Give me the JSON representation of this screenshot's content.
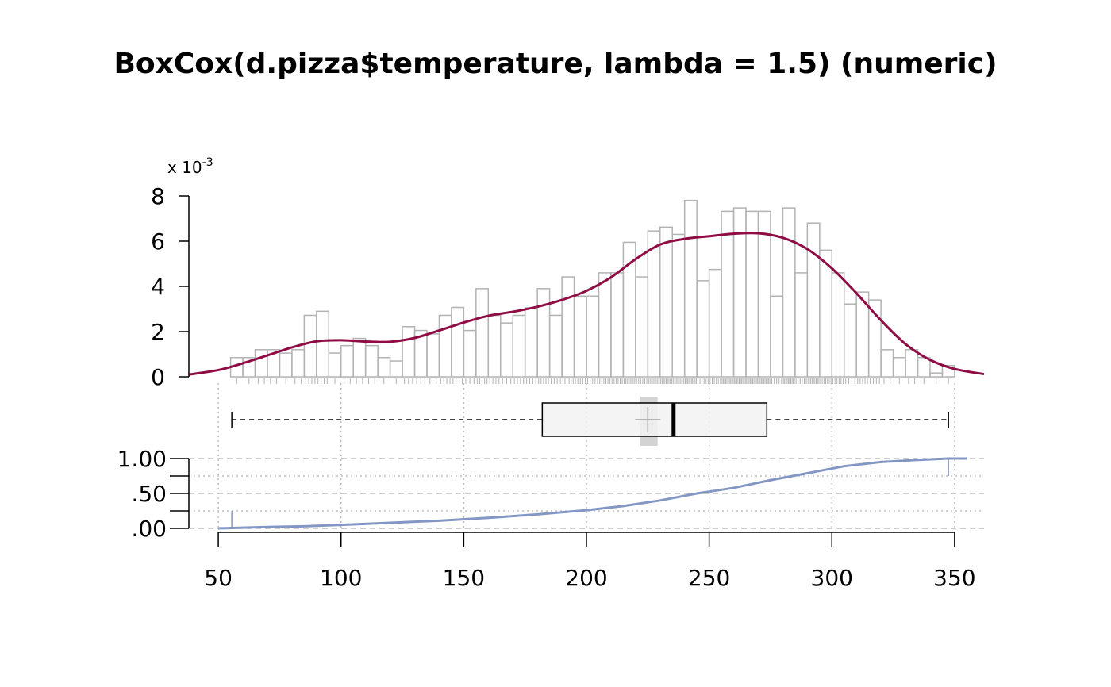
{
  "chart_data": {
    "type": "histogram-density-boxplot-ecdf",
    "title": "BoxCox(d.pizza$temperature, lambda = 1.5) (numeric)",
    "colors": {
      "bars": "#b3b3b3",
      "density": "#8f0c44",
      "box_fill": "#f2f2f2",
      "mean_band": "#d3d3d3",
      "ecdf": "#8497c4",
      "grid": "#bebebe"
    },
    "x_axis": {
      "ticks": [
        50,
        100,
        150,
        200,
        250,
        300,
        350
      ],
      "xlim": [
        38,
        362
      ]
    },
    "histogram": {
      "scale_label": "x 10",
      "scale_exponent": "-3",
      "y_ticks": [
        "0",
        "2",
        "4",
        "6",
        "8"
      ],
      "y_tick_values": [
        0,
        2,
        4,
        6,
        8
      ],
      "ylim": [
        0,
        8
      ],
      "bin_start": 55,
      "bin_width": 5,
      "densities": [
        0.85,
        0.85,
        1.2,
        1.2,
        1.05,
        1.2,
        2.72,
        2.9,
        1.05,
        1.38,
        1.7,
        1.38,
        0.85,
        0.7,
        2.22,
        2.05,
        1.9,
        2.72,
        3.07,
        2.05,
        3.9,
        2.72,
        2.38,
        2.72,
        3.05,
        3.9,
        2.72,
        4.42,
        3.57,
        3.57,
        4.6,
        4.6,
        5.95,
        4.42,
        6.45,
        6.62,
        6.3,
        7.8,
        4.25,
        4.75,
        7.32,
        7.47,
        7.32,
        7.32,
        3.57,
        7.47,
        4.6,
        6.8,
        5.6,
        4.6,
        3.22,
        3.75,
        3.4,
        1.2,
        0.85,
        1.2,
        0.85,
        0.17,
        0.5
      ]
    },
    "density_curve": {
      "x": [
        38,
        50,
        60,
        70,
        80,
        90,
        100,
        110,
        120,
        130,
        140,
        150,
        160,
        170,
        180,
        190,
        200,
        210,
        220,
        230,
        240,
        250,
        260,
        270,
        280,
        290,
        300,
        310,
        320,
        330,
        340,
        350,
        362
      ],
      "y": [
        0.1,
        0.3,
        0.6,
        0.95,
        1.3,
        1.57,
        1.62,
        1.56,
        1.55,
        1.72,
        2.05,
        2.4,
        2.7,
        2.88,
        3.1,
        3.4,
        3.8,
        4.4,
        5.2,
        5.85,
        6.1,
        6.22,
        6.33,
        6.35,
        6.15,
        5.65,
        4.8,
        3.7,
        2.5,
        1.45,
        0.75,
        0.35,
        0.12
      ]
    },
    "boxplot": {
      "whisker_low": 55.5,
      "q1": 182,
      "median": 235.5,
      "q3": 273.5,
      "whisker_high": 347.5,
      "mean": 225,
      "mean_ci": [
        222,
        229
      ]
    },
    "ecdf": {
      "y_ticks": [
        "1.00",
        ".50",
        ".00"
      ],
      "y_tick_values": [
        1,
        0.5,
        0
      ],
      "minor_y_ticks": [
        0.25,
        0.75
      ],
      "x": [
        50,
        55.5,
        70,
        85,
        100,
        120,
        140,
        160,
        180,
        200,
        215,
        230,
        245,
        260,
        275,
        290,
        305,
        320,
        335,
        347.5,
        355
      ],
      "y": [
        0,
        0.005,
        0.02,
        0.03,
        0.05,
        0.08,
        0.11,
        0.15,
        0.2,
        0.26,
        0.32,
        0.4,
        0.5,
        0.58,
        0.69,
        0.79,
        0.89,
        0.95,
        0.98,
        1,
        1
      ]
    }
  }
}
